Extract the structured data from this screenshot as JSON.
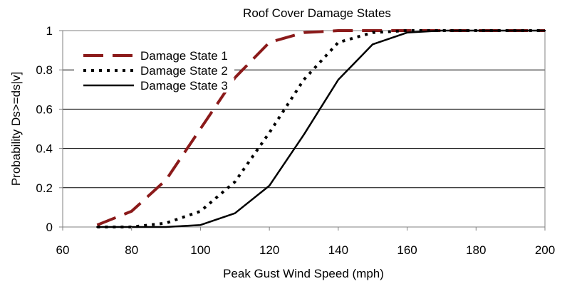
{
  "chart_data": {
    "type": "line",
    "title": "Roof Cover Damage States",
    "xlabel": "Peak Gust Wind Speed (mph)",
    "ylabel": "Probability Ds>=ds|v]",
    "xlim": [
      60,
      200
    ],
    "ylim": [
      0,
      1
    ],
    "x_ticks": [
      "60",
      "80",
      "100",
      "120",
      "140",
      "160",
      "180",
      "200"
    ],
    "y_ticks": [
      "0",
      "0.2",
      "0.4",
      "0.6",
      "0.8",
      "1"
    ],
    "grid": "horizontal",
    "legend_position": "top-left",
    "series": [
      {
        "name": "Damage State 1",
        "color": "#8b1a1a",
        "style": "dashed",
        "x": [
          70,
          80,
          90,
          100,
          110,
          120,
          130,
          140,
          150,
          160,
          170,
          200
        ],
        "y": [
          0.01,
          0.08,
          0.24,
          0.5,
          0.76,
          0.94,
          0.99,
          1.0,
          1.0,
          1.0,
          1.0,
          1.0
        ]
      },
      {
        "name": "Damage State 2",
        "color": "#000000",
        "style": "dotted",
        "x": [
          70,
          80,
          90,
          100,
          110,
          120,
          130,
          140,
          150,
          160,
          170,
          200
        ],
        "y": [
          0.0,
          0.0,
          0.02,
          0.08,
          0.23,
          0.48,
          0.75,
          0.94,
          0.99,
          1.0,
          1.0,
          1.0
        ]
      },
      {
        "name": "Damage State 3",
        "color": "#000000",
        "style": "solid",
        "x": [
          70,
          80,
          90,
          100,
          110,
          120,
          130,
          140,
          150,
          160,
          170,
          200
        ],
        "y": [
          0.0,
          0.0,
          0.0,
          0.01,
          0.07,
          0.21,
          0.47,
          0.75,
          0.93,
          0.99,
          1.0,
          1.0
        ]
      }
    ]
  }
}
